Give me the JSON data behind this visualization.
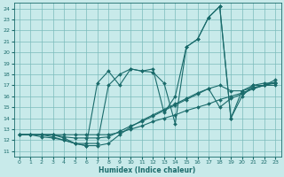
{
  "xlabel": "Humidex (Indice chaleur)",
  "bg_color": "#c8eaea",
  "grid_color": "#7bbcbc",
  "line_color": "#1a6b6b",
  "xlim": [
    -0.5,
    23.5
  ],
  "ylim": [
    10.5,
    24.5
  ],
  "xticks": [
    0,
    1,
    2,
    3,
    4,
    5,
    6,
    7,
    8,
    9,
    10,
    11,
    12,
    13,
    14,
    15,
    16,
    17,
    18,
    19,
    20,
    21,
    22,
    23
  ],
  "yticks": [
    11,
    12,
    13,
    14,
    15,
    16,
    17,
    18,
    19,
    20,
    21,
    22,
    23,
    24
  ],
  "series": [
    {
      "x": [
        0,
        1,
        2,
        3,
        4,
        5,
        6,
        7,
        8,
        9,
        10,
        11,
        12,
        13,
        14,
        15,
        16,
        17,
        18,
        19,
        20,
        21,
        22,
        23
      ],
      "y": [
        12.5,
        12.5,
        12.5,
        12.5,
        12.2,
        11.7,
        11.7,
        11.7,
        17.0,
        18.0,
        18.5,
        18.3,
        18.2,
        17.2,
        13.5,
        20.5,
        21.2,
        23.2,
        24.2,
        14.0,
        16.0,
        17.0,
        17.0,
        17.5
      ]
    },
    {
      "x": [
        0,
        1,
        2,
        3,
        4,
        5,
        6,
        7,
        8,
        9,
        10,
        11,
        12,
        13,
        14,
        15,
        16,
        17,
        18,
        19,
        20,
        21,
        22,
        23
      ],
      "y": [
        12.5,
        12.5,
        12.5,
        12.3,
        12.0,
        11.7,
        11.5,
        17.2,
        18.3,
        17.0,
        18.5,
        18.3,
        18.5,
        14.5,
        16.0,
        20.5,
        21.2,
        23.2,
        24.2,
        14.0,
        16.5,
        17.0,
        17.2,
        17.2
      ]
    },
    {
      "x": [
        0,
        1,
        2,
        3,
        4,
        5,
        6,
        7,
        8,
        9,
        10,
        11,
        12,
        13,
        14,
        15,
        16,
        17,
        18,
        19,
        20,
        21,
        22,
        23
      ],
      "y": [
        12.5,
        12.5,
        12.5,
        12.5,
        12.3,
        12.2,
        12.2,
        12.2,
        12.3,
        12.8,
        13.3,
        13.7,
        14.2,
        14.7,
        15.2,
        15.7,
        16.2,
        16.7,
        17.0,
        16.5,
        16.5,
        16.8,
        17.0,
        17.2
      ]
    },
    {
      "x": [
        0,
        1,
        2,
        3,
        4,
        5,
        6,
        7,
        8,
        9,
        10,
        11,
        12,
        13,
        14,
        15,
        16,
        17,
        18,
        19,
        20,
        21,
        22,
        23
      ],
      "y": [
        12.5,
        12.5,
        12.5,
        12.5,
        12.5,
        12.5,
        12.5,
        12.5,
        12.5,
        12.7,
        13.0,
        13.3,
        13.7,
        14.0,
        14.3,
        14.7,
        15.0,
        15.3,
        15.7,
        16.0,
        16.3,
        16.7,
        17.0,
        17.3
      ]
    },
    {
      "x": [
        0,
        1,
        2,
        3,
        4,
        5,
        6,
        7,
        8,
        9,
        10,
        11,
        12,
        13,
        14,
        15,
        16,
        17,
        18,
        19,
        20,
        21,
        22,
        23
      ],
      "y": [
        12.5,
        12.5,
        12.3,
        12.2,
        12.0,
        11.7,
        11.5,
        11.5,
        11.7,
        12.5,
        13.2,
        13.8,
        14.3,
        14.8,
        15.3,
        15.8,
        16.3,
        16.7,
        15.0,
        15.8,
        16.2,
        16.7,
        17.0,
        17.0
      ]
    }
  ]
}
